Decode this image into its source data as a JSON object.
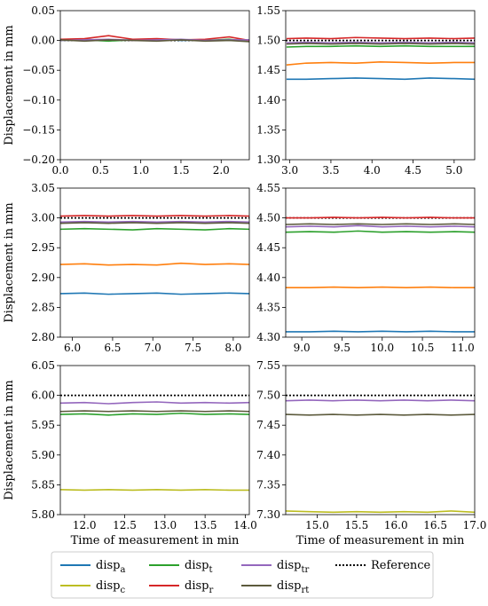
{
  "chart_data": [
    {
      "type": "line",
      "xlim": [
        0.0,
        2.35
      ],
      "ylim": [
        -0.2,
        0.05
      ],
      "xticks": [
        "0.0",
        "0.5",
        "1.0",
        "1.5",
        "2.0"
      ],
      "yticks": [
        "−0.20",
        "−0.15",
        "−0.10",
        "−0.05",
        "0.00",
        "0.05"
      ],
      "xlabel": "",
      "ylabel": "Displacement in mm",
      "reference": 0.0,
      "series": [
        {
          "key": "a",
          "x": [
            0.0,
            0.3,
            0.6,
            0.9,
            1.2,
            1.5,
            1.8,
            2.1,
            2.35
          ],
          "y": [
            0.001,
            0.002,
            0.0,
            0.001,
            0.002,
            0.0,
            0.001,
            0.0,
            0.001
          ]
        },
        {
          "key": "t",
          "x": [
            0.0,
            0.3,
            0.6,
            0.9,
            1.2,
            1.5,
            1.8,
            2.1,
            2.35
          ],
          "y": [
            0.0,
            0.001,
            -0.001,
            0.001,
            0.0,
            0.001,
            0.0,
            0.002,
            -0.001
          ]
        },
        {
          "key": "r",
          "x": [
            0.0,
            0.3,
            0.6,
            0.9,
            1.2,
            1.5,
            1.8,
            2.1,
            2.35
          ],
          "y": [
            0.002,
            0.003,
            0.008,
            0.002,
            0.003,
            0.001,
            0.002,
            0.006,
            0.0
          ]
        },
        {
          "key": "tr",
          "x": [
            0.0,
            0.3,
            0.6,
            0.9,
            1.2,
            1.5,
            1.8,
            2.1,
            2.35
          ],
          "y": [
            0.0,
            0.001,
            0.002,
            0.0,
            0.001,
            0.002,
            0.0,
            0.001,
            0.001
          ]
        },
        {
          "key": "rt",
          "x": [
            0.0,
            0.3,
            0.6,
            0.9,
            1.2,
            1.5,
            1.8,
            2.1,
            2.35
          ],
          "y": [
            0.001,
            -0.001,
            0.001,
            0.0,
            -0.001,
            0.001,
            -0.001,
            0.0,
            -0.002
          ]
        }
      ]
    },
    {
      "type": "line",
      "xlim": [
        2.95,
        5.25
      ],
      "ylim": [
        1.3,
        1.55
      ],
      "xticks": [
        "3.0",
        "3.5",
        "4.0",
        "4.5",
        "5.0"
      ],
      "yticks": [
        "1.30",
        "1.35",
        "1.40",
        "1.45",
        "1.50",
        "1.55"
      ],
      "xlabel": "",
      "ylabel": "",
      "reference": 1.5,
      "series": [
        {
          "key": "a",
          "x": [
            2.96,
            3.2,
            3.5,
            3.8,
            4.1,
            4.4,
            4.7,
            5.0,
            5.25
          ],
          "y": [
            1.435,
            1.435,
            1.436,
            1.437,
            1.436,
            1.435,
            1.437,
            1.436,
            1.435
          ]
        },
        {
          "key": "c",
          "x": [
            2.96,
            3.2,
            3.5,
            3.8,
            4.1,
            4.4,
            4.7,
            5.0,
            5.25
          ],
          "y": [
            1.459,
            1.462,
            1.463,
            1.462,
            1.464,
            1.463,
            1.462,
            1.463,
            1.463
          ]
        },
        {
          "key": "t",
          "x": [
            2.96,
            3.2,
            3.5,
            3.8,
            4.1,
            4.4,
            4.7,
            5.0,
            5.25
          ],
          "y": [
            1.489,
            1.49,
            1.49,
            1.491,
            1.49,
            1.491,
            1.49,
            1.49,
            1.49
          ]
        },
        {
          "key": "r",
          "x": [
            2.96,
            3.2,
            3.5,
            3.8,
            4.1,
            4.4,
            4.7,
            5.0,
            5.25
          ],
          "y": [
            1.503,
            1.504,
            1.503,
            1.505,
            1.504,
            1.503,
            1.504,
            1.503,
            1.504
          ]
        },
        {
          "key": "tr",
          "x": [
            2.96,
            3.2,
            3.5,
            3.8,
            4.1,
            4.4,
            4.7,
            5.0,
            5.25
          ],
          "y": [
            1.496,
            1.497,
            1.496,
            1.497,
            1.496,
            1.497,
            1.496,
            1.497,
            1.496
          ]
        },
        {
          "key": "rt",
          "x": [
            2.96,
            3.2,
            3.5,
            3.8,
            4.1,
            4.4,
            4.7,
            5.0,
            5.25
          ],
          "y": [
            1.494,
            1.495,
            1.494,
            1.495,
            1.494,
            1.495,
            1.494,
            1.495,
            1.494
          ]
        }
      ]
    },
    {
      "type": "line",
      "xlim": [
        5.85,
        8.2
      ],
      "ylim": [
        2.8,
        3.05
      ],
      "xticks": [
        "6.0",
        "6.5",
        "7.0",
        "7.5",
        "8.0"
      ],
      "yticks": [
        "2.80",
        "2.85",
        "2.90",
        "2.95",
        "3.00",
        "3.05"
      ],
      "xlabel": "",
      "ylabel": "Displacement in mm",
      "reference": 3.0,
      "series": [
        {
          "key": "a",
          "x": [
            5.85,
            6.15,
            6.45,
            6.75,
            7.05,
            7.35,
            7.65,
            7.95,
            8.2
          ],
          "y": [
            2.873,
            2.874,
            2.872,
            2.873,
            2.874,
            2.872,
            2.873,
            2.874,
            2.873
          ]
        },
        {
          "key": "c",
          "x": [
            5.85,
            6.15,
            6.45,
            6.75,
            7.05,
            7.35,
            7.65,
            7.95,
            8.2
          ],
          "y": [
            2.922,
            2.923,
            2.921,
            2.922,
            2.921,
            2.924,
            2.922,
            2.923,
            2.922
          ]
        },
        {
          "key": "t",
          "x": [
            5.85,
            6.15,
            6.45,
            6.75,
            7.05,
            7.35,
            7.65,
            7.95,
            8.2
          ],
          "y": [
            2.981,
            2.982,
            2.981,
            2.98,
            2.982,
            2.981,
            2.98,
            2.982,
            2.981
          ]
        },
        {
          "key": "r",
          "x": [
            5.85,
            6.15,
            6.45,
            6.75,
            7.05,
            7.35,
            7.65,
            7.95,
            8.2
          ],
          "y": [
            3.003,
            3.004,
            3.003,
            3.004,
            3.003,
            3.004,
            3.003,
            3.004,
            3.003
          ]
        },
        {
          "key": "tr",
          "x": [
            5.85,
            6.15,
            6.45,
            6.75,
            7.05,
            7.35,
            7.65,
            7.95,
            8.2
          ],
          "y": [
            2.993,
            2.994,
            2.993,
            2.994,
            2.993,
            2.994,
            2.993,
            2.994,
            2.993
          ]
        },
        {
          "key": "rt",
          "x": [
            5.85,
            6.15,
            6.45,
            6.75,
            7.05,
            7.35,
            7.65,
            7.95,
            8.2
          ],
          "y": [
            2.991,
            2.992,
            2.991,
            2.992,
            2.991,
            2.992,
            2.991,
            2.992,
            2.991
          ]
        }
      ]
    },
    {
      "type": "line",
      "xlim": [
        8.8,
        11.15
      ],
      "ylim": [
        4.3,
        4.55
      ],
      "xticks": [
        "9.0",
        "9.5",
        "10.0",
        "10.5",
        "11.0"
      ],
      "yticks": [
        "4.30",
        "4.35",
        "4.40",
        "4.45",
        "4.50",
        "4.55"
      ],
      "xlabel": "",
      "ylabel": "",
      "reference": 4.5,
      "series": [
        {
          "key": "a",
          "x": [
            8.8,
            9.1,
            9.4,
            9.7,
            10.0,
            10.3,
            10.6,
            10.9,
            11.15
          ],
          "y": [
            4.309,
            4.309,
            4.31,
            4.309,
            4.31,
            4.309,
            4.31,
            4.309,
            4.309
          ]
        },
        {
          "key": "c",
          "x": [
            8.8,
            9.1,
            9.4,
            9.7,
            10.0,
            10.3,
            10.6,
            10.9,
            11.15
          ],
          "y": [
            4.383,
            4.383,
            4.384,
            4.383,
            4.384,
            4.383,
            4.384,
            4.383,
            4.383
          ]
        },
        {
          "key": "t",
          "x": [
            8.8,
            9.1,
            9.4,
            9.7,
            10.0,
            10.3,
            10.6,
            10.9,
            11.15
          ],
          "y": [
            4.476,
            4.477,
            4.476,
            4.478,
            4.476,
            4.477,
            4.476,
            4.477,
            4.476
          ]
        },
        {
          "key": "r",
          "x": [
            8.8,
            9.1,
            9.4,
            9.7,
            10.0,
            10.3,
            10.6,
            10.9,
            11.15
          ],
          "y": [
            4.5,
            4.5,
            4.501,
            4.5,
            4.501,
            4.5,
            4.501,
            4.5,
            4.5
          ]
        },
        {
          "key": "tr",
          "x": [
            8.8,
            9.1,
            9.4,
            9.7,
            10.0,
            10.3,
            10.6,
            10.9,
            11.15
          ],
          "y": [
            4.485,
            4.486,
            4.485,
            4.487,
            4.485,
            4.486,
            4.485,
            4.486,
            4.485
          ]
        },
        {
          "key": "rt",
          "x": [
            8.8,
            9.1,
            9.4,
            9.7,
            10.0,
            10.3,
            10.6,
            10.9,
            11.15
          ],
          "y": [
            4.489,
            4.49,
            4.489,
            4.49,
            4.489,
            4.49,
            4.489,
            4.49,
            4.489
          ]
        }
      ]
    },
    {
      "type": "line",
      "xlim": [
        11.7,
        14.05
      ],
      "ylim": [
        5.8,
        6.05
      ],
      "xticks": [
        "12.0",
        "12.5",
        "13.0",
        "13.5",
        "14.0"
      ],
      "yticks": [
        "5.80",
        "5.85",
        "5.90",
        "5.95",
        "6.00",
        "6.05"
      ],
      "xlabel": "Time of measurement in min",
      "ylabel": "Displacement in mm",
      "reference": 6.0,
      "series": [
        {
          "key": "c",
          "x": [
            11.7,
            12.0,
            12.3,
            12.6,
            12.9,
            13.2,
            13.5,
            13.8,
            14.05
          ],
          "y": [
            5.842,
            5.841,
            5.842,
            5.841,
            5.842,
            5.841,
            5.842,
            5.841,
            5.841
          ]
        },
        {
          "key": "t",
          "x": [
            11.7,
            12.0,
            12.3,
            12.6,
            12.9,
            13.2,
            13.5,
            13.8,
            14.05
          ],
          "y": [
            5.968,
            5.969,
            5.967,
            5.969,
            5.968,
            5.97,
            5.968,
            5.969,
            5.968
          ]
        },
        {
          "key": "tr",
          "x": [
            11.7,
            12.0,
            12.3,
            12.6,
            12.9,
            13.2,
            13.5,
            13.8,
            14.05
          ],
          "y": [
            5.987,
            5.988,
            5.986,
            5.988,
            5.989,
            5.987,
            5.988,
            5.987,
            5.988
          ]
        },
        {
          "key": "rt",
          "x": [
            11.7,
            12.0,
            12.3,
            12.6,
            12.9,
            13.2,
            13.5,
            13.8,
            14.05
          ],
          "y": [
            5.973,
            5.974,
            5.973,
            5.974,
            5.973,
            5.974,
            5.973,
            5.974,
            5.973
          ]
        }
      ]
    },
    {
      "type": "line",
      "xlim": [
        14.6,
        17.0
      ],
      "ylim": [
        7.3,
        7.55
      ],
      "xticks": [
        "15.0",
        "15.5",
        "16.0",
        "16.5",
        "17.0"
      ],
      "yticks": [
        "7.30",
        "7.35",
        "7.40",
        "7.45",
        "7.50",
        "7.55"
      ],
      "xlabel": "Time of measurement in min",
      "ylabel": "",
      "reference": 7.5,
      "series": [
        {
          "key": "c",
          "x": [
            14.6,
            14.9,
            15.2,
            15.5,
            15.8,
            16.1,
            16.4,
            16.7,
            17.0
          ],
          "y": [
            7.306,
            7.305,
            7.304,
            7.305,
            7.304,
            7.305,
            7.304,
            7.306,
            7.304
          ]
        },
        {
          "key": "tr",
          "x": [
            14.6,
            14.9,
            15.2,
            15.5,
            15.8,
            16.1,
            16.4,
            16.7,
            17.0
          ],
          "y": [
            7.491,
            7.492,
            7.491,
            7.492,
            7.491,
            7.492,
            7.491,
            7.492,
            7.491
          ]
        },
        {
          "key": "rt",
          "x": [
            14.6,
            14.9,
            15.2,
            15.5,
            15.8,
            16.1,
            16.4,
            16.7,
            17.0
          ],
          "y": [
            7.468,
            7.467,
            7.468,
            7.467,
            7.468,
            7.467,
            7.468,
            7.467,
            7.468
          ]
        }
      ]
    }
  ],
  "legend": {
    "items": [
      {
        "key": "a",
        "base": "disp",
        "sub": "a",
        "color": "#1f77b4",
        "dash": ""
      },
      {
        "key": "c",
        "base": "disp",
        "sub": "c",
        "color": "#bcbd22",
        "dash": ""
      },
      {
        "key": "t",
        "base": "disp",
        "sub": "t",
        "color": "#2ca02c",
        "dash": ""
      },
      {
        "key": "r",
        "base": "disp",
        "sub": "r",
        "color": "#d62728",
        "dash": ""
      },
      {
        "key": "tr",
        "base": "disp",
        "sub": "tr",
        "color": "#9467bd",
        "dash": ""
      },
      {
        "key": "rt",
        "base": "disp",
        "sub": "rt",
        "color": "#5c5a3c",
        "dash": ""
      },
      {
        "key": "ref",
        "base": "Reference",
        "sub": "",
        "color": "#000000",
        "dash": "2,2"
      }
    ]
  },
  "series_colors": {
    "a": "#1f77b4",
    "c": "#ff7f0e",
    "t": "#2ca02c",
    "r": "#d62728",
    "tr": "#9467bd",
    "rt": "#5c5a3c"
  },
  "series_colors_bottom_row": {
    "c": "#bcbd22",
    "t": "#2ca02c",
    "tr": "#9467bd",
    "rt": "#5c5a3c"
  },
  "reference_color": "#000000"
}
